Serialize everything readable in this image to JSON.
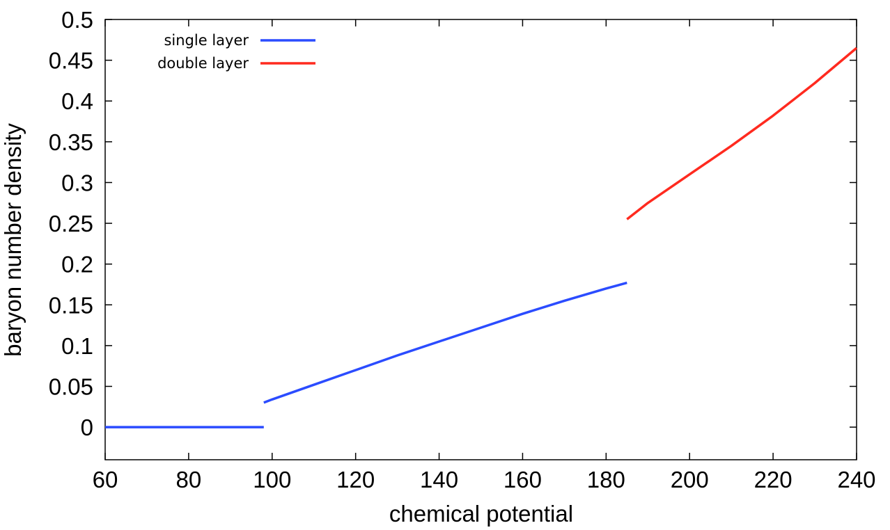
{
  "chart_data": {
    "type": "line",
    "title": "",
    "xlabel": "chemical potential",
    "ylabel": "baryon number density",
    "xlim": [
      60,
      240
    ],
    "ylim": [
      -0.04,
      0.5
    ],
    "x_ticks": [
      60,
      80,
      100,
      120,
      140,
      160,
      180,
      200,
      220,
      240
    ],
    "x_tick_labels": [
      "60",
      "80",
      "100",
      "120",
      "140",
      "160",
      "180",
      "200",
      "220",
      "240"
    ],
    "y_ticks": [
      0,
      0.05,
      0.1,
      0.15,
      0.2,
      0.25,
      0.3,
      0.35,
      0.4,
      0.45,
      0.5
    ],
    "y_tick_labels": [
      "0",
      "0.05",
      "0.1",
      "0.15",
      "0.2",
      "0.25",
      "0.3",
      "0.35",
      "0.4",
      "0.45",
      "0.5"
    ],
    "grid": false,
    "legend_position": "top-left",
    "series": [
      {
        "name": "single layer",
        "color": "#2b4cff",
        "segments": [
          [
            [
              60,
              0
            ],
            [
              98,
              0
            ]
          ],
          [
            [
              98,
              0.03
            ],
            [
              100,
              0.034
            ],
            [
              110,
              0.052
            ],
            [
              120,
              0.07
            ],
            [
              130,
              0.088
            ],
            [
              140,
              0.105
            ],
            [
              150,
              0.122
            ],
            [
              160,
              0.139
            ],
            [
              170,
              0.155
            ],
            [
              180,
              0.17
            ],
            [
              185,
              0.177
            ]
          ]
        ]
      },
      {
        "name": "double layer",
        "color": "#ff2a1f",
        "segments": [
          [
            [
              185,
              0.255
            ],
            [
              190,
              0.275
            ],
            [
              200,
              0.31
            ],
            [
              210,
              0.345
            ],
            [
              220,
              0.382
            ],
            [
              230,
              0.422
            ],
            [
              240,
              0.465
            ]
          ]
        ]
      }
    ]
  }
}
